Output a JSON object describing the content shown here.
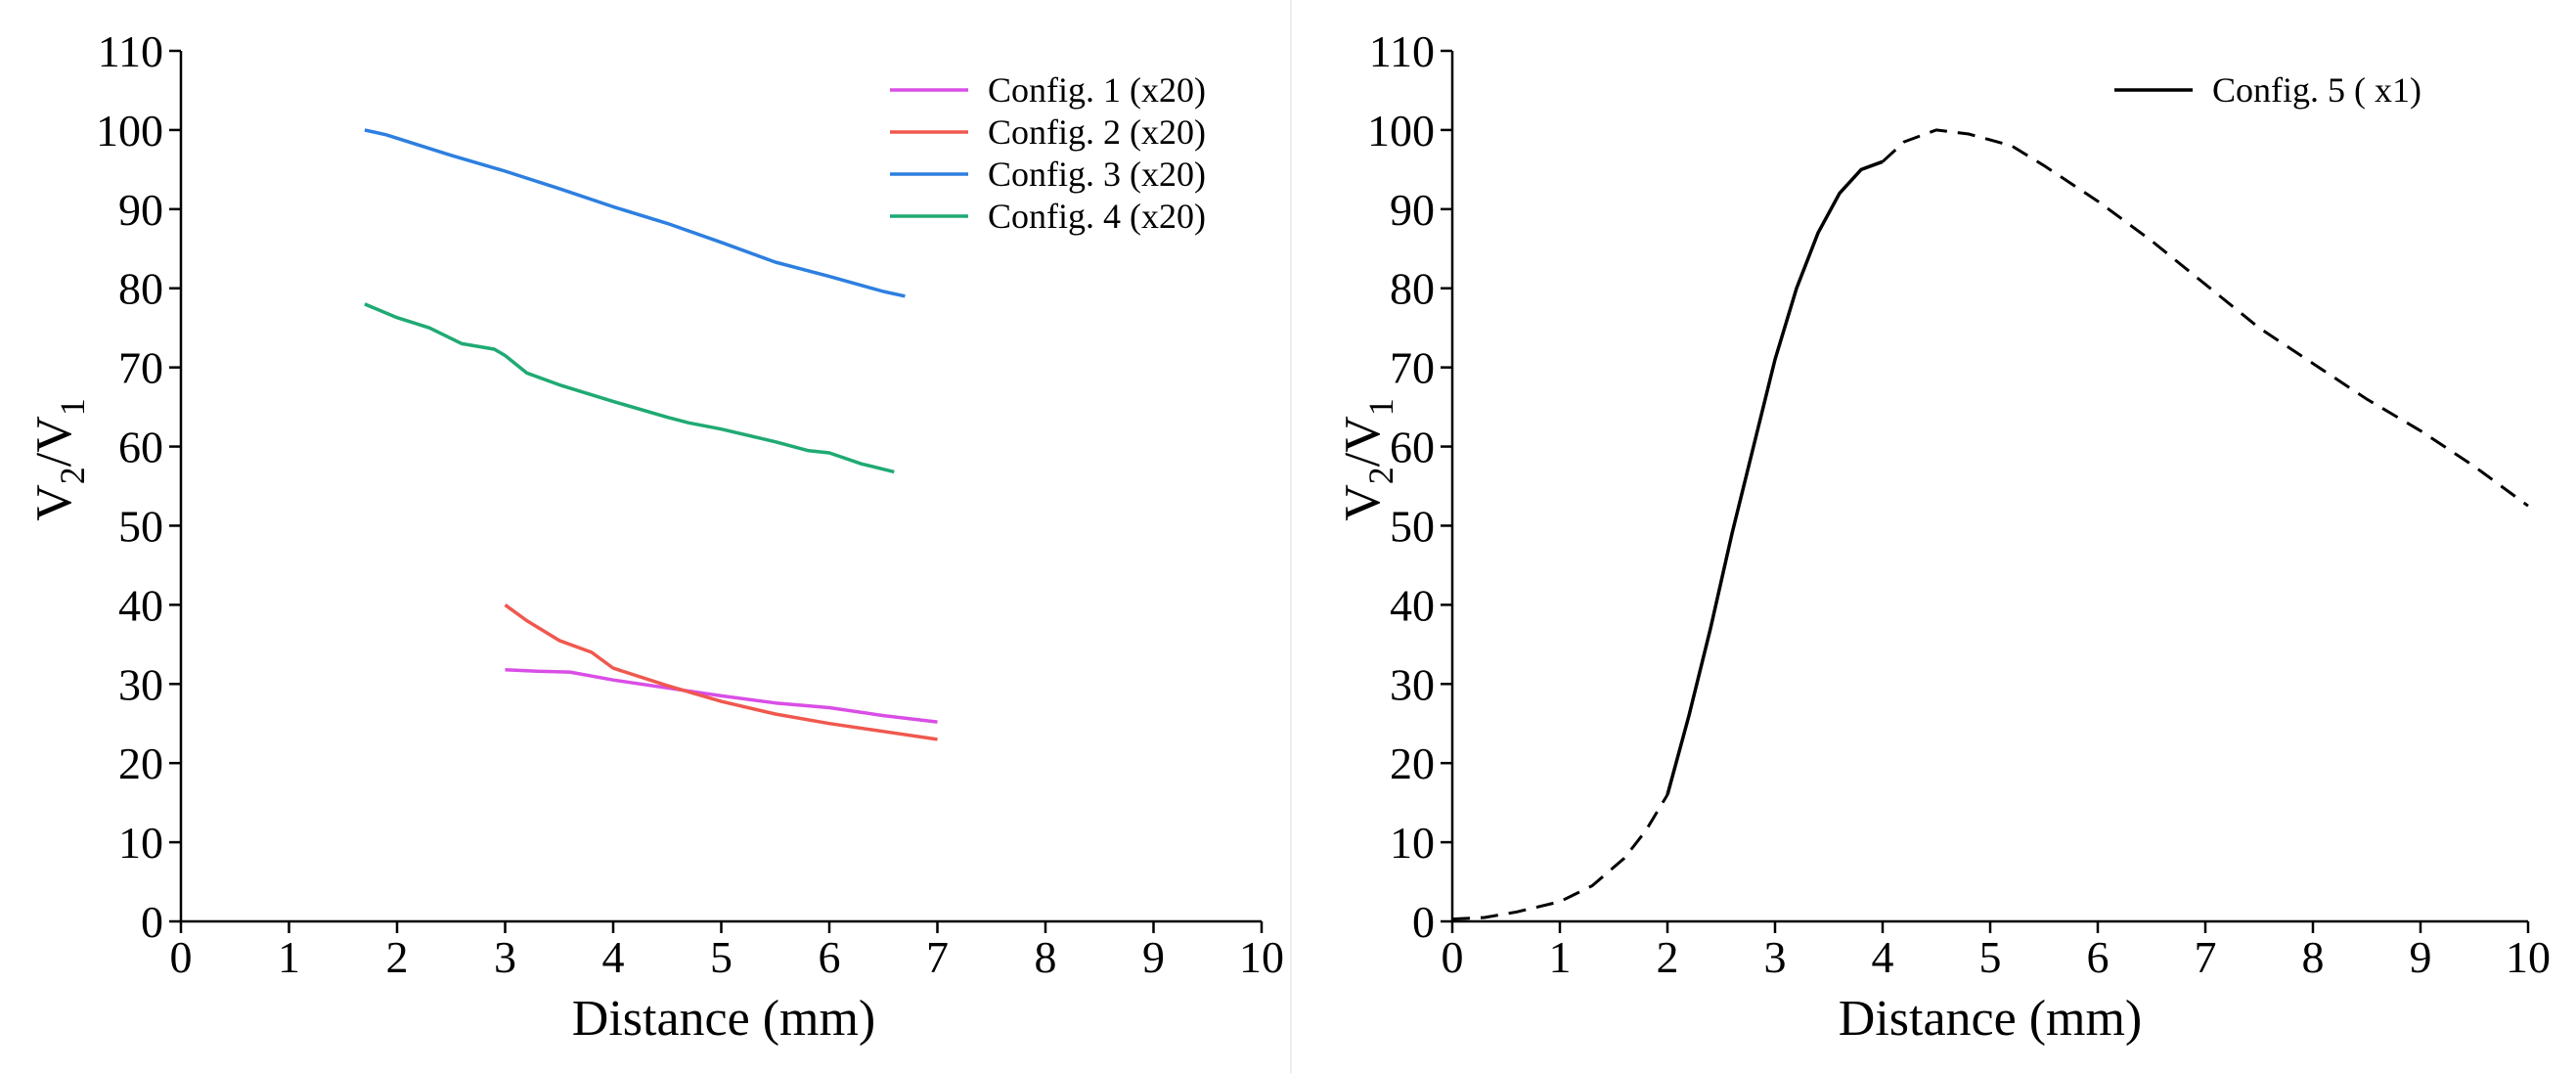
{
  "chart_data": [
    {
      "type": "line",
      "title": "",
      "xlabel": "Distance (mm)",
      "ylabel_main": "V",
      "ylabel_sub1": "2",
      "ylabel_sep": "/V",
      "ylabel_sub2": "1",
      "xlim": [
        0,
        10
      ],
      "ylim": [
        0,
        110
      ],
      "xticks": [
        "0",
        "1",
        "2",
        "3",
        "4",
        "5",
        "6",
        "7",
        "8",
        "9",
        "10"
      ],
      "yticks": [
        "0",
        "10",
        "20",
        "30",
        "40",
        "50",
        "60",
        "70",
        "80",
        "90",
        "100",
        "110"
      ],
      "legend_position": "top-right",
      "series": [
        {
          "name": "Config. 1 (x20)",
          "color": "#d94ee6",
          "x": [
            3.0,
            3.3,
            3.6,
            4.0,
            4.5,
            5.0,
            5.5,
            6.0,
            6.5,
            7.0
          ],
          "y": [
            31.8,
            31.6,
            31.5,
            30.5,
            29.5,
            28.5,
            27.6,
            27.0,
            26.0,
            25.2
          ]
        },
        {
          "name": "Config. 2 (x20)",
          "color": "#f0584e",
          "x": [
            3.0,
            3.2,
            3.5,
            3.8,
            4.0,
            4.5,
            5.0,
            5.5,
            6.0,
            6.5,
            7.0
          ],
          "y": [
            40.0,
            38.0,
            35.5,
            34.0,
            32.0,
            29.8,
            27.8,
            26.2,
            25.0,
            24.0,
            23.0
          ]
        },
        {
          "name": "Config. 3 (x20)",
          "color": "#2d7fe0",
          "x": [
            1.7,
            1.9,
            2.5,
            3.0,
            3.5,
            4.0,
            4.5,
            5.0,
            5.5,
            6.0,
            6.5,
            6.7
          ],
          "y": [
            100.0,
            99.4,
            96.8,
            94.8,
            92.6,
            90.3,
            88.2,
            85.8,
            83.3,
            81.5,
            79.6,
            79.0
          ]
        },
        {
          "name": "Config. 4 (x20)",
          "color": "#1faa73",
          "x": [
            1.7,
            2.0,
            2.3,
            2.6,
            2.9,
            3.0,
            3.2,
            3.5,
            4.0,
            4.5,
            4.7,
            5.0,
            5.5,
            5.8,
            6.0,
            6.3,
            6.6
          ],
          "y": [
            78.0,
            76.3,
            75.0,
            73.0,
            72.3,
            71.5,
            69.3,
            67.8,
            65.7,
            63.7,
            63.0,
            62.2,
            60.6,
            59.5,
            59.2,
            57.8,
            56.8
          ]
        }
      ]
    },
    {
      "type": "line",
      "title": "",
      "xlabel": "Distance (mm)",
      "ylabel_main": "V",
      "ylabel_sub1": "2",
      "ylabel_sep": "/V",
      "ylabel_sub2": "1",
      "xlim": [
        0,
        10
      ],
      "ylim": [
        0,
        110
      ],
      "xticks": [
        "0",
        "1",
        "2",
        "3",
        "4",
        "5",
        "6",
        "7",
        "8",
        "9",
        "10"
      ],
      "yticks": [
        "0",
        "10",
        "20",
        "30",
        "40",
        "50",
        "60",
        "70",
        "80",
        "90",
        "100",
        "110"
      ],
      "legend_position": "top-right",
      "series": [
        {
          "name": "Config. 5 (  x1)",
          "color": "#000000",
          "solid": {
            "x": [
              2.0,
              2.2,
              2.4,
              2.6,
              2.8,
              3.0,
              3.2,
              3.4,
              3.6,
              3.8,
              4.0
            ],
            "y": [
              16.0,
              26.0,
              37.0,
              49.0,
              60.0,
              71.0,
              80.0,
              87.0,
              92.0,
              95.0,
              96.0
            ]
          },
          "dashed_segments": [
            {
              "x": [
                0.0,
                0.3,
                0.6,
                1.0,
                1.3,
                1.6,
                1.8,
                2.0
              ],
              "y": [
                0.3,
                0.5,
                1.2,
                2.5,
                4.5,
                8.0,
                11.5,
                16.0
              ]
            },
            {
              "x": [
                4.0,
                4.2,
                4.5,
                4.8,
                5.2,
                5.5,
                6.0,
                6.5,
                7.0,
                7.5,
                8.0,
                8.5,
                9.0,
                9.5,
                10.0
              ],
              "y": [
                96.0,
                98.5,
                100.0,
                99.5,
                98.0,
                95.5,
                91.0,
                86.0,
                80.5,
                75.0,
                70.5,
                66.0,
                62.0,
                57.5,
                52.5
              ]
            }
          ]
        }
      ]
    }
  ]
}
